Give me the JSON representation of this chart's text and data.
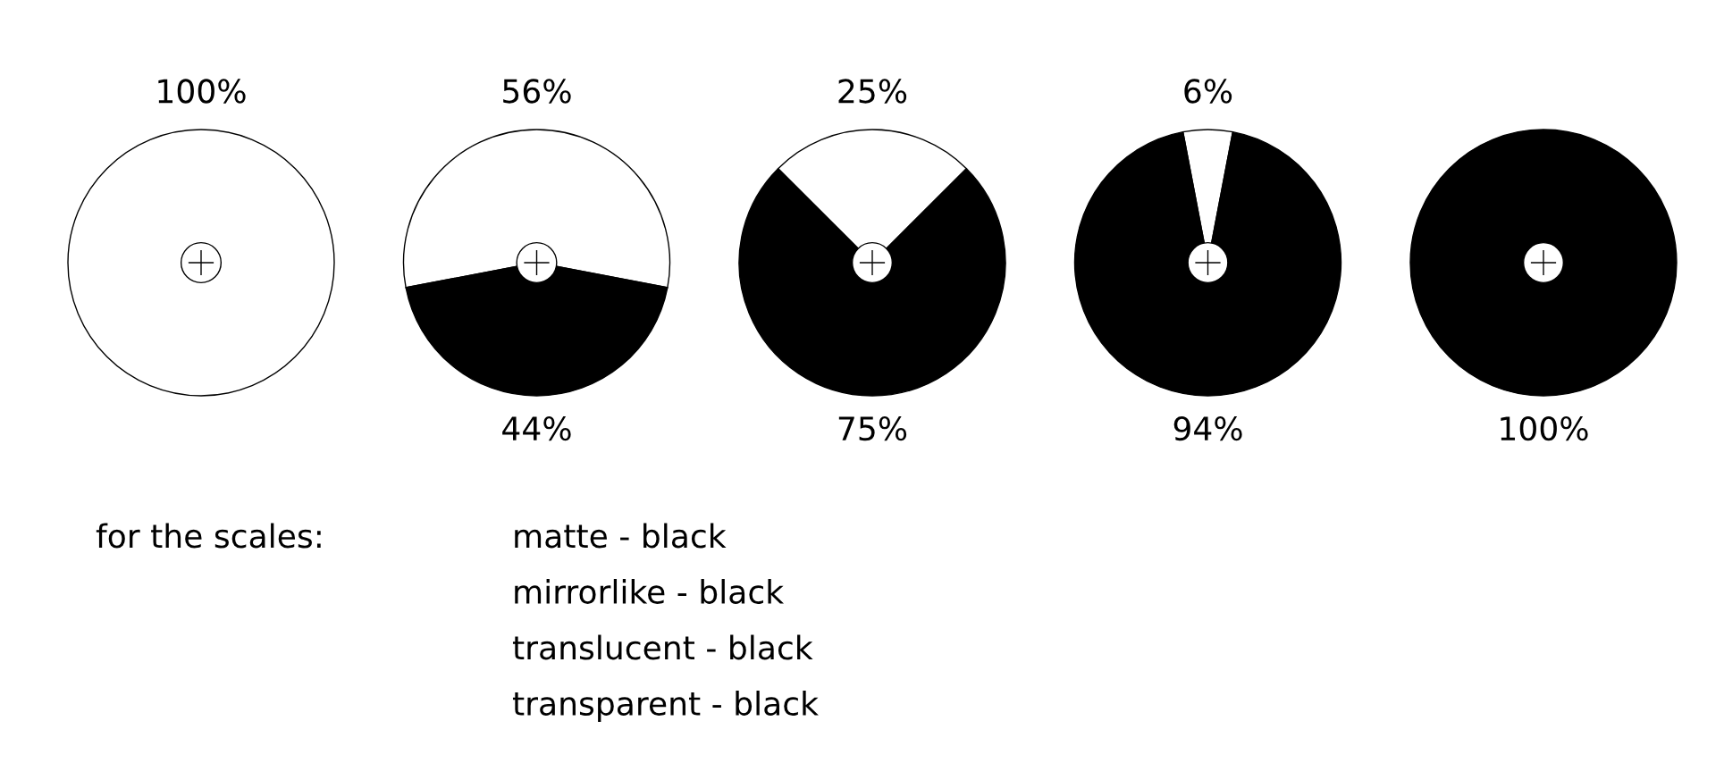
{
  "chart_data": [
    {
      "type": "pie",
      "categories": [
        null,
        null
      ],
      "values": [
        100,
        0
      ],
      "colors": [
        "#ffffff",
        "#000000"
      ],
      "value_labels": [
        "100%",
        null
      ]
    },
    {
      "type": "pie",
      "categories": [
        null,
        null
      ],
      "values": [
        56,
        44
      ],
      "colors": [
        "#ffffff",
        "#000000"
      ],
      "value_labels": [
        "56%",
        "44%"
      ]
    },
    {
      "type": "pie",
      "categories": [
        null,
        null
      ],
      "values": [
        25,
        75
      ],
      "colors": [
        "#ffffff",
        "#000000"
      ],
      "value_labels": [
        "25%",
        "75%"
      ]
    },
    {
      "type": "pie",
      "categories": [
        null,
        null
      ],
      "values": [
        6,
        94
      ],
      "colors": [
        "#ffffff",
        "#000000"
      ],
      "value_labels": [
        "6%",
        "94%"
      ]
    },
    {
      "type": "pie",
      "categories": [
        null,
        null
      ],
      "values": [
        0,
        100
      ],
      "colors": [
        "#ffffff",
        "#000000"
      ],
      "value_labels": [
        null,
        "100%"
      ]
    },
    {
      "type": "other",
      "annotations": [
        "for the scales:",
        "matte - black",
        "mirrorlike - black",
        "translucent - black",
        "transparent - black"
      ]
    }
  ]
}
